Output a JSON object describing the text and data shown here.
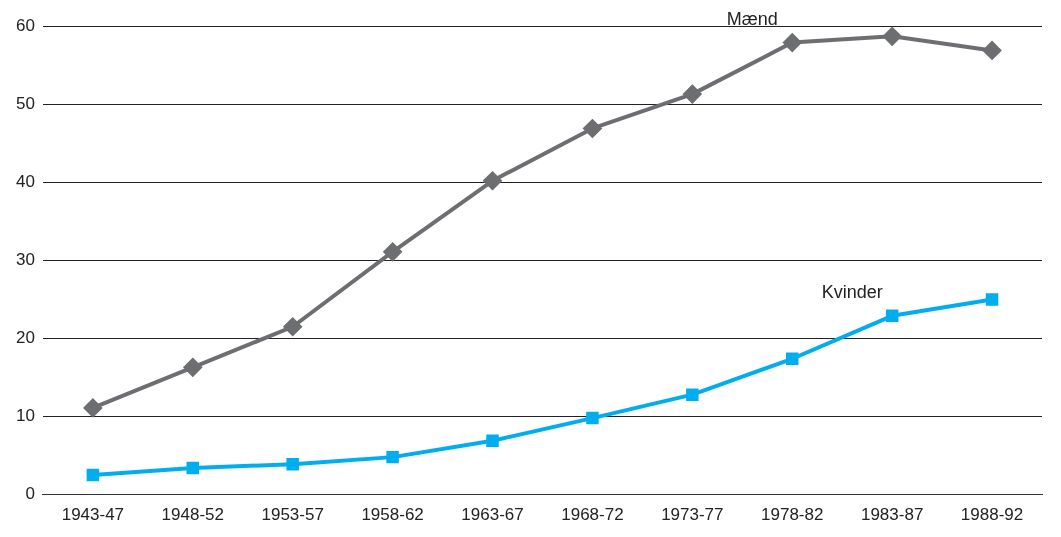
{
  "chart_data": {
    "type": "line",
    "categories": [
      "1943-47",
      "1948-52",
      "1953-57",
      "1958-62",
      "1963-67",
      "1968-72",
      "1973-77",
      "1978-82",
      "1983-87",
      "1988-92"
    ],
    "series": [
      {
        "name": "Mænd",
        "color": "#6d6e71",
        "marker": "diamond",
        "values": [
          11.1,
          16.3,
          21.5,
          31.1,
          40.2,
          46.9,
          51.3,
          57.9,
          58.7,
          56.9
        ]
      },
      {
        "name": "Kvinder",
        "color": "#00aeef",
        "marker": "square",
        "values": [
          2.5,
          3.4,
          3.9,
          4.8,
          6.9,
          9.8,
          12.8,
          17.4,
          22.9,
          25.0
        ]
      }
    ],
    "ylim": [
      0,
      60
    ],
    "yticks": [
      0,
      10,
      20,
      30,
      40,
      50,
      60
    ],
    "grid": "y",
    "legend": false,
    "line_style": "solid"
  }
}
